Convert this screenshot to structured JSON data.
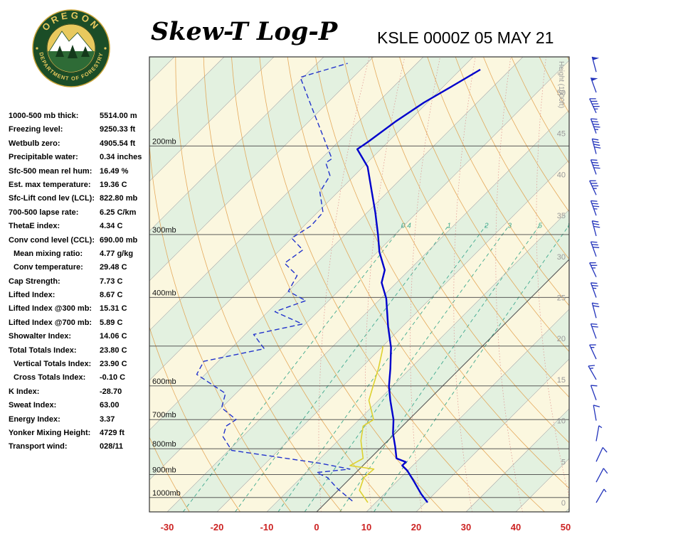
{
  "header": {
    "title": "Skew-T Log-P",
    "station": "KSLE 0000Z 05 MAY 21"
  },
  "logo": {
    "top_text": "OREGON",
    "bottom_text": "DEPARTMENT OF FORESTRY"
  },
  "stats": [
    {
      "label": "1000-500 mb thick:",
      "value": "5514.00 m",
      "indent": false
    },
    {
      "label": "Freezing level:",
      "value": "9250.33 ft",
      "indent": false
    },
    {
      "label": "Wetbulb zero:",
      "value": "4905.54 ft",
      "indent": false
    },
    {
      "label": "Precipitable water:",
      "value": "0.34 inches",
      "indent": false
    },
    {
      "label": "Sfc-500 mean rel hum:",
      "value": "16.49 %",
      "indent": false
    },
    {
      "label": "Est. max temperature:",
      "value": "19.36 C",
      "indent": false
    },
    {
      "label": "Sfc-Lift cond lev (LCL):",
      "value": "822.80 mb",
      "indent": false
    },
    {
      "label": "700-500 lapse rate:",
      "value": "6.25 C/km",
      "indent": false
    },
    {
      "label": "ThetaE index:",
      "value": "4.34 C",
      "indent": false
    },
    {
      "label": "Conv cond level (CCL):",
      "value": "690.00 mb",
      "indent": false
    },
    {
      "label": "Mean mixing ratio:",
      "value": "4.77 g/kg",
      "indent": true
    },
    {
      "label": "Conv temperature:",
      "value": "29.48 C",
      "indent": true
    },
    {
      "label": "Cap Strength:",
      "value": "7.73 C",
      "indent": false
    },
    {
      "label": "Lifted Index:",
      "value": "8.67 C",
      "indent": false
    },
    {
      "label": "Lifted Index @300 mb:",
      "value": "15.31 C",
      "indent": false
    },
    {
      "label": "Lifted Index @700 mb:",
      "value": "5.89 C",
      "indent": false
    },
    {
      "label": "Showalter Index:",
      "value": "14.06 C",
      "indent": false
    },
    {
      "label": "Total Totals Index:",
      "value": "23.80 C",
      "indent": false
    },
    {
      "label": "Vertical Totals Index:",
      "value": "23.90 C",
      "indent": true
    },
    {
      "label": "Cross Totals Index:",
      "value": "-0.10 C",
      "indent": true
    },
    {
      "label": "K Index:",
      "value": "-28.70",
      "indent": false
    },
    {
      "label": "Sweat Index:",
      "value": "63.00",
      "indent": false
    },
    {
      "label": "Energy Index:",
      "value": "3.37",
      "indent": false
    },
    {
      "label": "Yonker Mixing Height:",
      "value": "4729 ft",
      "indent": false
    },
    {
      "label": "Transport wind:",
      "value": "028/11",
      "indent": false
    }
  ],
  "chart_data": {
    "type": "skewt-sounding",
    "pressure_axis": [
      {
        "p": 200,
        "text": "200mb"
      },
      {
        "p": 300,
        "text": "300mb"
      },
      {
        "p": 400,
        "text": "400mb"
      },
      {
        "p": 600,
        "text": "600mb"
      },
      {
        "p": 700,
        "text": "700mb"
      },
      {
        "p": 800,
        "text": "800mb"
      },
      {
        "p": 900,
        "text": "900mb"
      },
      {
        "p": 1000,
        "text": "1000mb"
      }
    ],
    "pressure_lines": [
      200,
      300,
      400,
      500,
      600,
      700,
      800,
      900,
      1000
    ],
    "temp_ticks": [
      -30,
      -20,
      -10,
      0,
      10,
      20,
      30,
      40,
      50
    ],
    "height_ticks": [
      0,
      5,
      10,
      15,
      20,
      25,
      30,
      35,
      40,
      45,
      50
    ],
    "height_axis_label": "Height (1000ft)",
    "mixing_ratio_values": [
      0.4,
      1,
      2,
      3,
      5,
      8
    ],
    "series": {
      "temperature": [
        [
          1023,
          20.4
        ],
        [
          984,
          17.4
        ],
        [
          922,
          12.9
        ],
        [
          884,
          9.9
        ],
        [
          864,
          7.9
        ],
        [
          850,
          7.9
        ],
        [
          836,
          5.3
        ],
        [
          791,
          2.6
        ],
        [
          746,
          -0.4
        ],
        [
          700,
          -3.1
        ],
        [
          641,
          -7.6
        ],
        [
          601,
          -10.7
        ],
        [
          554,
          -14.0
        ],
        [
          503,
          -18.1
        ],
        [
          457,
          -22.9
        ],
        [
          402,
          -28.9
        ],
        [
          374,
          -33.0
        ],
        [
          353,
          -34.9
        ],
        [
          325,
          -39.6
        ],
        [
          300,
          -43.4
        ],
        [
          271,
          -48.4
        ],
        [
          243,
          -54.0
        ],
        [
          220,
          -59.1
        ],
        [
          203,
          -64.7
        ],
        [
          196,
          -64.0
        ],
        [
          179,
          -62.6
        ],
        [
          164,
          -60.7
        ],
        [
          152,
          -58.3
        ],
        [
          141,
          -56.0
        ]
      ],
      "dewpoint": [
        [
          1016,
          5.0
        ],
        [
          962,
          -0.3
        ],
        [
          913,
          -4.7
        ],
        [
          892,
          -7.9
        ],
        [
          878,
          -1.9
        ],
        [
          855,
          -9.0
        ],
        [
          806,
          -29.4
        ],
        [
          757,
          -33.9
        ],
        [
          721,
          -35.4
        ],
        [
          700,
          -34.7
        ],
        [
          663,
          -40.0
        ],
        [
          621,
          -42.1
        ],
        [
          569,
          -51.7
        ],
        [
          536,
          -52.9
        ],
        [
          506,
          -43.3
        ],
        [
          474,
          -48.3
        ],
        [
          452,
          -40.6
        ],
        [
          427,
          -48.6
        ],
        [
          406,
          -44.6
        ],
        [
          389,
          -50.0
        ],
        [
          362,
          -51.4
        ],
        [
          342,
          -56.4
        ],
        [
          322,
          -55.4
        ],
        [
          305,
          -60.0
        ],
        [
          288,
          -58.6
        ],
        [
          271,
          -58.9
        ],
        [
          247,
          -63.6
        ],
        [
          229,
          -64.9
        ],
        [
          216,
          -68.3
        ],
        [
          212,
          -67.9
        ],
        [
          168,
          -82.1
        ],
        [
          146,
          -90.6
        ],
        [
          137,
          -83.9
        ]
      ],
      "wetbulb": [
        [
          1023,
          8.4
        ],
        [
          968,
          4.3
        ],
        [
          913,
          2.6
        ],
        [
          878,
          2.9
        ],
        [
          864,
          -2.6
        ],
        [
          836,
          -1.4
        ],
        [
          771,
          -5.4
        ],
        [
          721,
          -7.9
        ],
        [
          700,
          -7.1
        ],
        [
          641,
          -11.9
        ],
        [
          601,
          -13.9
        ],
        [
          554,
          -16.4
        ],
        [
          512,
          -19.1
        ],
        [
          500,
          -20.0
        ]
      ]
    },
    "winds": [
      [
        0,
        30,
        5
      ],
      [
        2.5,
        28,
        10
      ],
      [
        5,
        25,
        10
      ],
      [
        7.5,
        10,
        5
      ],
      [
        10,
        350,
        10
      ],
      [
        12.5,
        340,
        10
      ],
      [
        15,
        330,
        15
      ],
      [
        17.5,
        335,
        15
      ],
      [
        20,
        340,
        20
      ],
      [
        22.5,
        345,
        20
      ],
      [
        25,
        340,
        25
      ],
      [
        27.5,
        335,
        25
      ],
      [
        30,
        340,
        30
      ],
      [
        32.5,
        345,
        30
      ],
      [
        35,
        340,
        35
      ],
      [
        37.5,
        335,
        35
      ],
      [
        40,
        340,
        40
      ],
      [
        42.5,
        345,
        40
      ],
      [
        45,
        340,
        45
      ],
      [
        47.5,
        335,
        45
      ],
      [
        50,
        340,
        50
      ],
      [
        52.5,
        345,
        50
      ]
    ],
    "colors": {
      "temperature": "#0000CC",
      "dewpoint": "#2233CC",
      "wetbulb": "#DDD12F",
      "isotherm": "#A8A8A8",
      "isotherm_zero": "#555555",
      "dry_adiabat": "#E2A14E",
      "moist_adiabat": "#D97E7E",
      "mixing_ratio": "#3FA98E",
      "pressure_line": "#444444",
      "border": "#333333",
      "temp_label": "#CC2222",
      "pressure_label": "#111111",
      "height_label": "#999999",
      "wind_barb": "#2233BB",
      "band_a": "#FBF7DF",
      "band_b": "#E3F1E0",
      "logo_green": "#1B4D27",
      "logo_gold": "#E8C95E"
    }
  }
}
